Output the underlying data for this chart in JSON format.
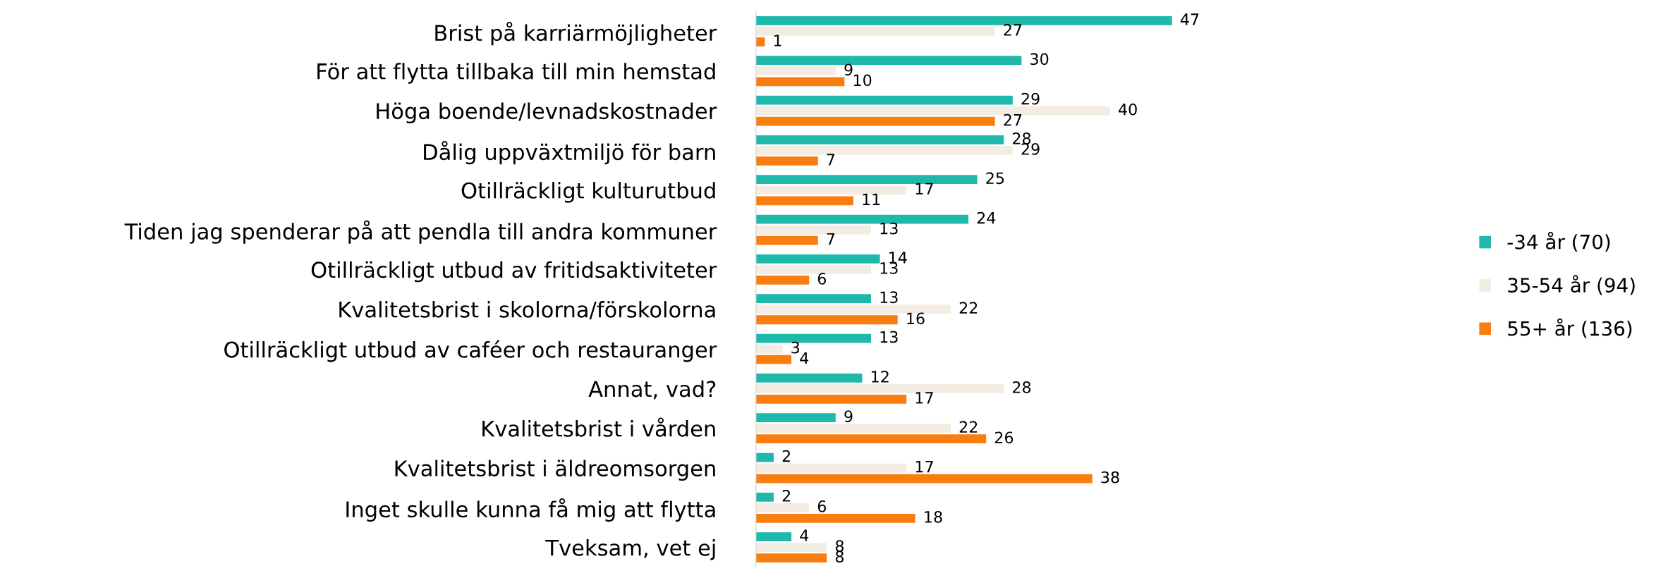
{
  "chart_data": {
    "type": "bar",
    "orientation": "horizontal",
    "categories": [
      "Brist på karriärmöjligheter",
      "För att flytta tillbaka till min hemstad",
      "Höga boende/levnadskostnader",
      "Dålig uppväxtmiljö för barn",
      "Otillräckligt kulturutbud",
      "Tiden jag spenderar på att pendla till andra kommuner",
      "Otillräckligt utbud av fritidsaktiviteter",
      "Kvalitetsbrist i skolorna/förskolorna",
      "Otillräckligt utbud av caféer och restauranger",
      "Annat, vad?",
      "Kvalitetsbrist i vården",
      "Kvalitetsbrist i äldreomsorgen",
      "Inget skulle kunna få mig att flytta",
      "Tveksam, vet ej"
    ],
    "series": [
      {
        "name": "-34 år (70)",
        "color": "#1fb9ab",
        "values": [
          47,
          30,
          29,
          28,
          25,
          24,
          14,
          13,
          13,
          12,
          9,
          2,
          2,
          4
        ]
      },
      {
        "name": "35-54 år (94)",
        "color": "#f3ece2",
        "values": [
          27,
          9,
          40,
          29,
          17,
          13,
          13,
          22,
          3,
          28,
          22,
          17,
          6,
          8
        ]
      },
      {
        "name": "55+ år (136)",
        "color": "#fa7d10",
        "values": [
          1,
          10,
          27,
          7,
          11,
          7,
          6,
          16,
          4,
          17,
          26,
          38,
          18,
          8
        ]
      }
    ],
    "data_labels": true,
    "legend": "right",
    "tick_labels": "y"
  }
}
